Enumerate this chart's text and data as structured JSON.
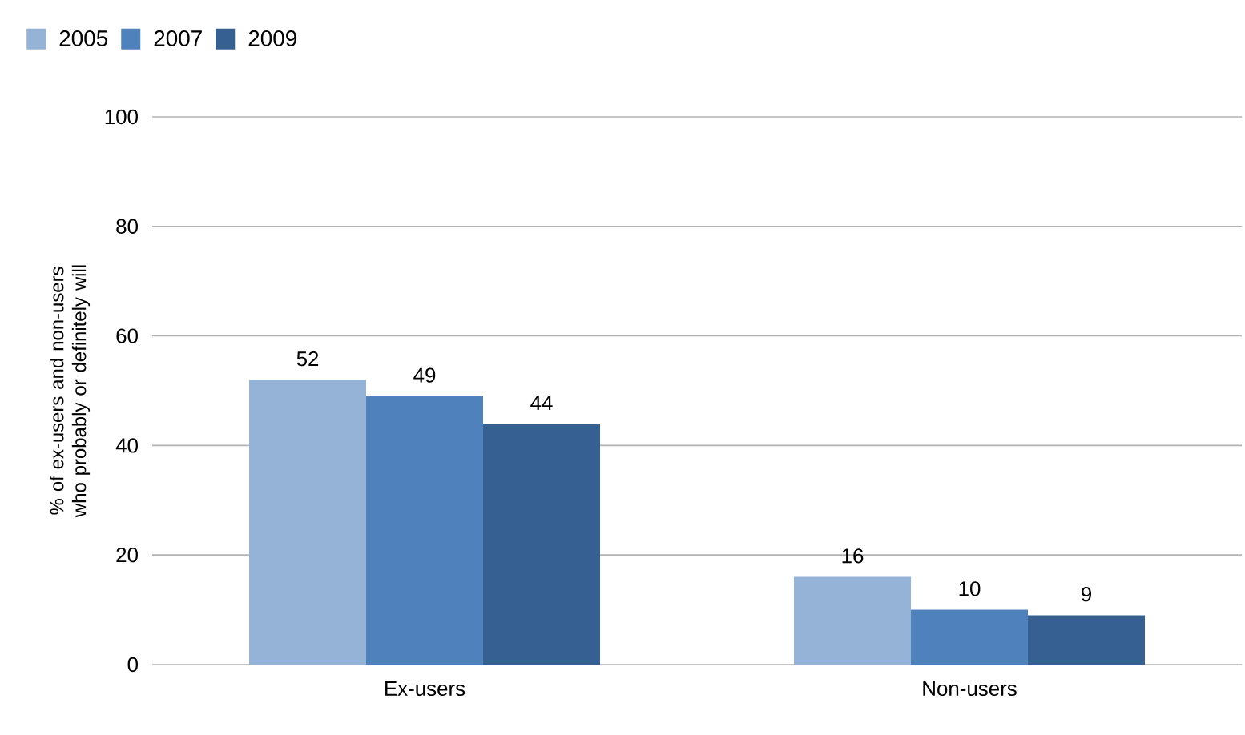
{
  "chart_data": {
    "type": "bar",
    "ylabel": "% of ex-users and non-users who probably or definitely will",
    "categories": [
      "Ex-users",
      "Non-users"
    ],
    "series": [
      {
        "name": "2005",
        "color": "#95b3d7",
        "values": [
          52,
          16
        ]
      },
      {
        "name": "2007",
        "color": "#4f81bd",
        "values": [
          49,
          10
        ]
      },
      {
        "name": "2009",
        "color": "#376092",
        "values": [
          44,
          9
        ]
      }
    ],
    "ylim": [
      0,
      100
    ],
    "yticks": [
      0,
      20,
      40,
      60,
      80,
      100
    ],
    "grid": "y",
    "legend": "top left",
    "data_labels": true
  }
}
